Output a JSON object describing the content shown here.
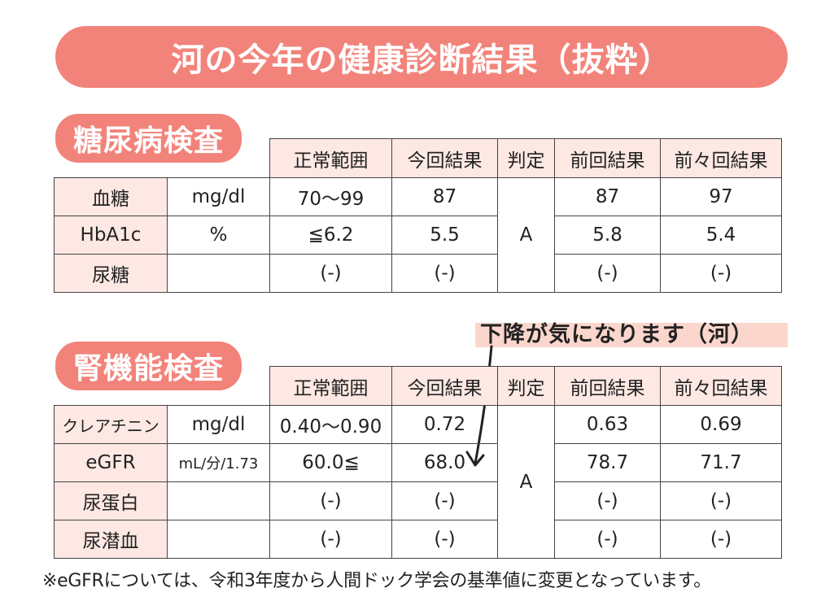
{
  "title": "河の今年の健康診断結果（抜粋）",
  "headers": [
    "正常範囲",
    "今回結果",
    "判定",
    "前回結果",
    "前々回結果"
  ],
  "sections": [
    {
      "label": "糖尿病検査",
      "judgement": "A",
      "rows": [
        {
          "name": "血糖",
          "unit": "mg/dl",
          "range": "70〜99",
          "current": "87",
          "previous": "87",
          "before_previous": "97"
        },
        {
          "name": "HbA1c",
          "unit": "%",
          "range": "≦6.2",
          "current": "5.5",
          "previous": "5.8",
          "before_previous": "5.4"
        },
        {
          "name": "尿糖",
          "unit": "",
          "range": "(-)",
          "current": "(-)",
          "previous": "(-)",
          "before_previous": "(-)"
        }
      ]
    },
    {
      "label": "腎機能検査",
      "judgement": "A",
      "rows": [
        {
          "name": "クレアチニン",
          "unit": "mg/dl",
          "range": "0.40〜0.90",
          "current": "0.72",
          "previous": "0.63",
          "before_previous": "0.69"
        },
        {
          "name": "eGFR",
          "unit": "mL/分/1.73",
          "range": "60.0≦",
          "current": "68.0",
          "previous": "78.7",
          "before_previous": "71.7"
        },
        {
          "name": "尿蛋白",
          "unit": "",
          "range": "(-)",
          "current": "(-)",
          "previous": "(-)",
          "before_previous": "(-)"
        },
        {
          "name": "尿潜血",
          "unit": "",
          "range": "(-)",
          "current": "(-)",
          "previous": "(-)",
          "before_previous": "(-)"
        }
      ]
    }
  ],
  "annotation": "下降が気になります（河）",
  "footnote": "※eGFRについては、令和3年度から人間ドック学会の基準値に変更となっています。",
  "colors": {
    "accent": "#f2837a",
    "cell_tint": "#fde8e3",
    "note_highlight": "#fbd6cc"
  }
}
